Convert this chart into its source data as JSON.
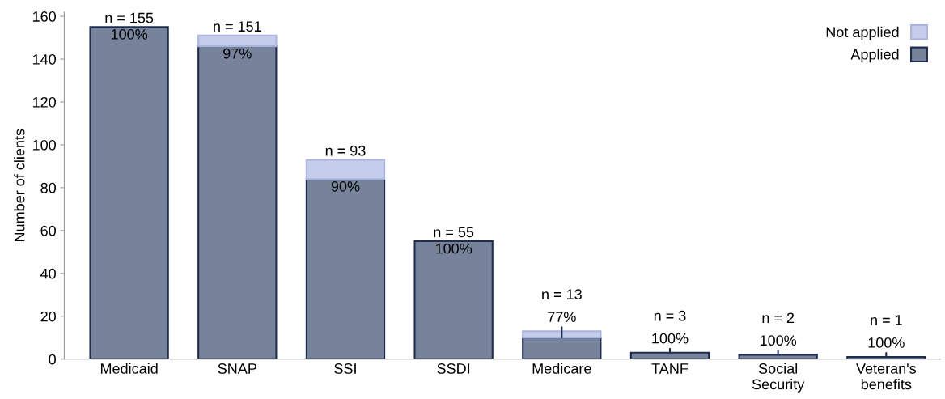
{
  "chart_data": {
    "type": "bar",
    "stacked": true,
    "ylabel": "Number of clients",
    "categories": [
      "Medicaid",
      "SNAP",
      "SSI",
      "SSDI",
      "Medicare",
      "TANF",
      "Social\nSecurity",
      "Veteran's\nbenefits"
    ],
    "series": [
      {
        "name": "Applied",
        "color": "#76839b",
        "values": [
          155,
          146,
          84,
          55,
          10,
          3,
          2,
          1
        ]
      },
      {
        "name": "Not applied",
        "color": "#c5cdeb",
        "values": [
          0,
          5,
          9,
          0,
          3,
          0,
          0,
          0
        ]
      }
    ],
    "annotations": [
      {
        "text": "100%",
        "x": "Medicaid",
        "y": 155
      },
      {
        "text": "97%",
        "x": "SNAP",
        "y": 146
      },
      {
        "text": "90%",
        "x": "SSI",
        "y": 84
      },
      {
        "text": "100%",
        "x": "SSDI",
        "y": 55
      },
      {
        "text": "77%",
        "x": "Medicare",
        "y": 10
      },
      {
        "text": "100%",
        "x": "TANF",
        "y": 3
      },
      {
        "text": "100%",
        "x": "Social\nSecurity",
        "y": 2
      },
      {
        "text": "100%",
        "x": "Veteran's\nbenefits",
        "y": 1
      }
    ],
    "totals": [
      "n = 155",
      "n = 151",
      "n = 93",
      "n = 55",
      "n = 13",
      "n = 3",
      "n = 2",
      "n = 1"
    ],
    "ylim": [
      0,
      162
    ],
    "yticks": [
      0,
      20,
      40,
      60,
      80,
      100,
      120,
      140,
      160
    ],
    "grid": false,
    "legend": "top right"
  }
}
